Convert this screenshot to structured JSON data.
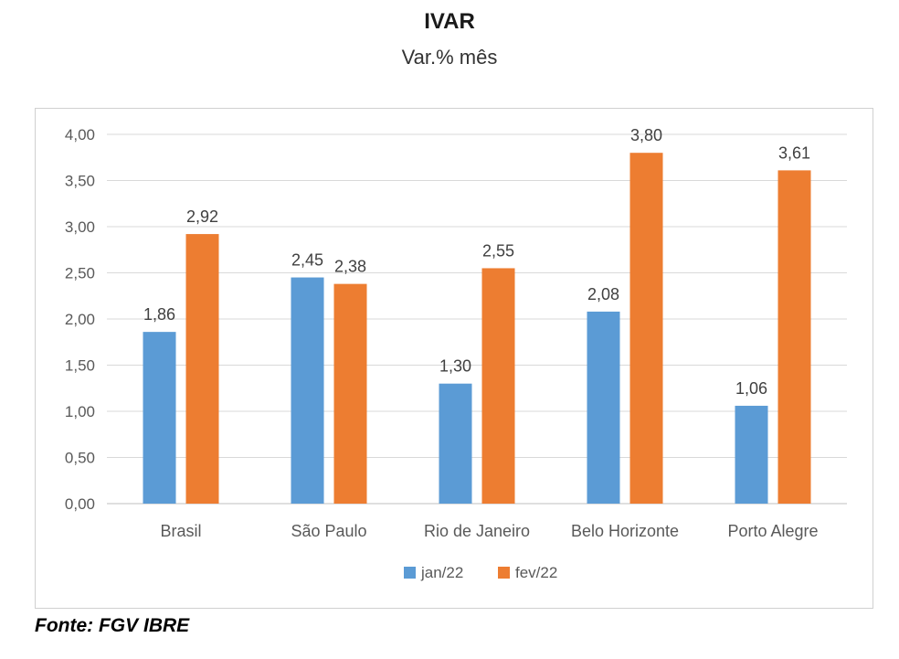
{
  "chart_data": {
    "type": "bar",
    "title": "IVAR",
    "subtitle": "Var.% mês",
    "categories": [
      "Brasil",
      "São Paulo",
      "Rio de Janeiro",
      "Belo Horizonte",
      "Porto Alegre"
    ],
    "series": [
      {
        "name": "jan/22",
        "color": "#5b9bd5",
        "values": [
          1.86,
          2.45,
          1.3,
          2.08,
          1.06
        ],
        "labels": [
          "1,86",
          "2,45",
          "1,30",
          "2,08",
          "1,06"
        ]
      },
      {
        "name": "fev/22",
        "color": "#ed7d31",
        "values": [
          2.92,
          2.38,
          2.55,
          3.8,
          3.61
        ],
        "labels": [
          "2,92",
          "2,38",
          "2,55",
          "3,80",
          "3,61"
        ]
      }
    ],
    "ylim": [
      0,
      4
    ],
    "yticks": [
      "0,00",
      "0,50",
      "1,00",
      "1,50",
      "2,00",
      "2,50",
      "3,00",
      "3,50",
      "4,00"
    ],
    "grid": true,
    "legend_position": "bottom"
  },
  "source": "Fonte: FGV IBRE"
}
